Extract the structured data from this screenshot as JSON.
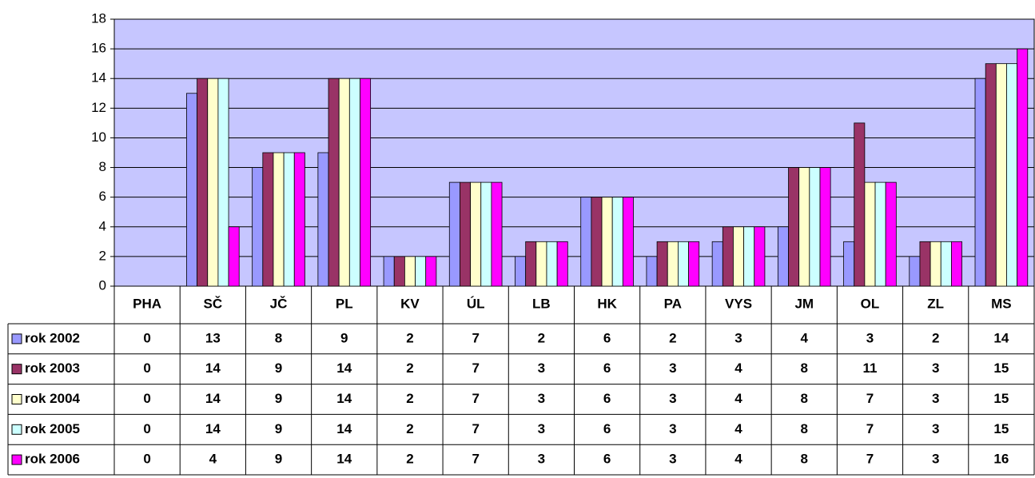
{
  "chart_data": {
    "type": "bar",
    "categories": [
      "PHA",
      "SČ",
      "JČ",
      "PL",
      "KV",
      "ÚL",
      "LB",
      "HK",
      "PA",
      "VYS",
      "JM",
      "OL",
      "ZL",
      "MS"
    ],
    "series": [
      {
        "name": "rok 2002",
        "color": "#9999ff",
        "values": [
          0,
          13,
          8,
          9,
          2,
          7,
          2,
          6,
          2,
          3,
          4,
          3,
          2,
          14
        ]
      },
      {
        "name": "rok 2003",
        "color": "#993366",
        "values": [
          0,
          14,
          9,
          14,
          2,
          7,
          3,
          6,
          3,
          4,
          8,
          11,
          3,
          15
        ]
      },
      {
        "name": "rok 2004",
        "color": "#ffffcc",
        "values": [
          0,
          14,
          9,
          14,
          2,
          7,
          3,
          6,
          3,
          4,
          8,
          7,
          3,
          15
        ]
      },
      {
        "name": "rok 2005",
        "color": "#ccffff",
        "values": [
          0,
          14,
          9,
          14,
          2,
          7,
          3,
          6,
          3,
          4,
          8,
          7,
          3,
          15
        ]
      },
      {
        "name": "rok 2006",
        "color": "#ff00ff",
        "values": [
          0,
          4,
          9,
          14,
          2,
          7,
          3,
          6,
          3,
          4,
          8,
          7,
          3,
          16
        ]
      }
    ],
    "ylim": [
      0,
      18
    ],
    "yticks": [
      0,
      2,
      4,
      6,
      8,
      10,
      12,
      14,
      16,
      18
    ],
    "grid": true,
    "plot_background": "#c6c6ff"
  }
}
